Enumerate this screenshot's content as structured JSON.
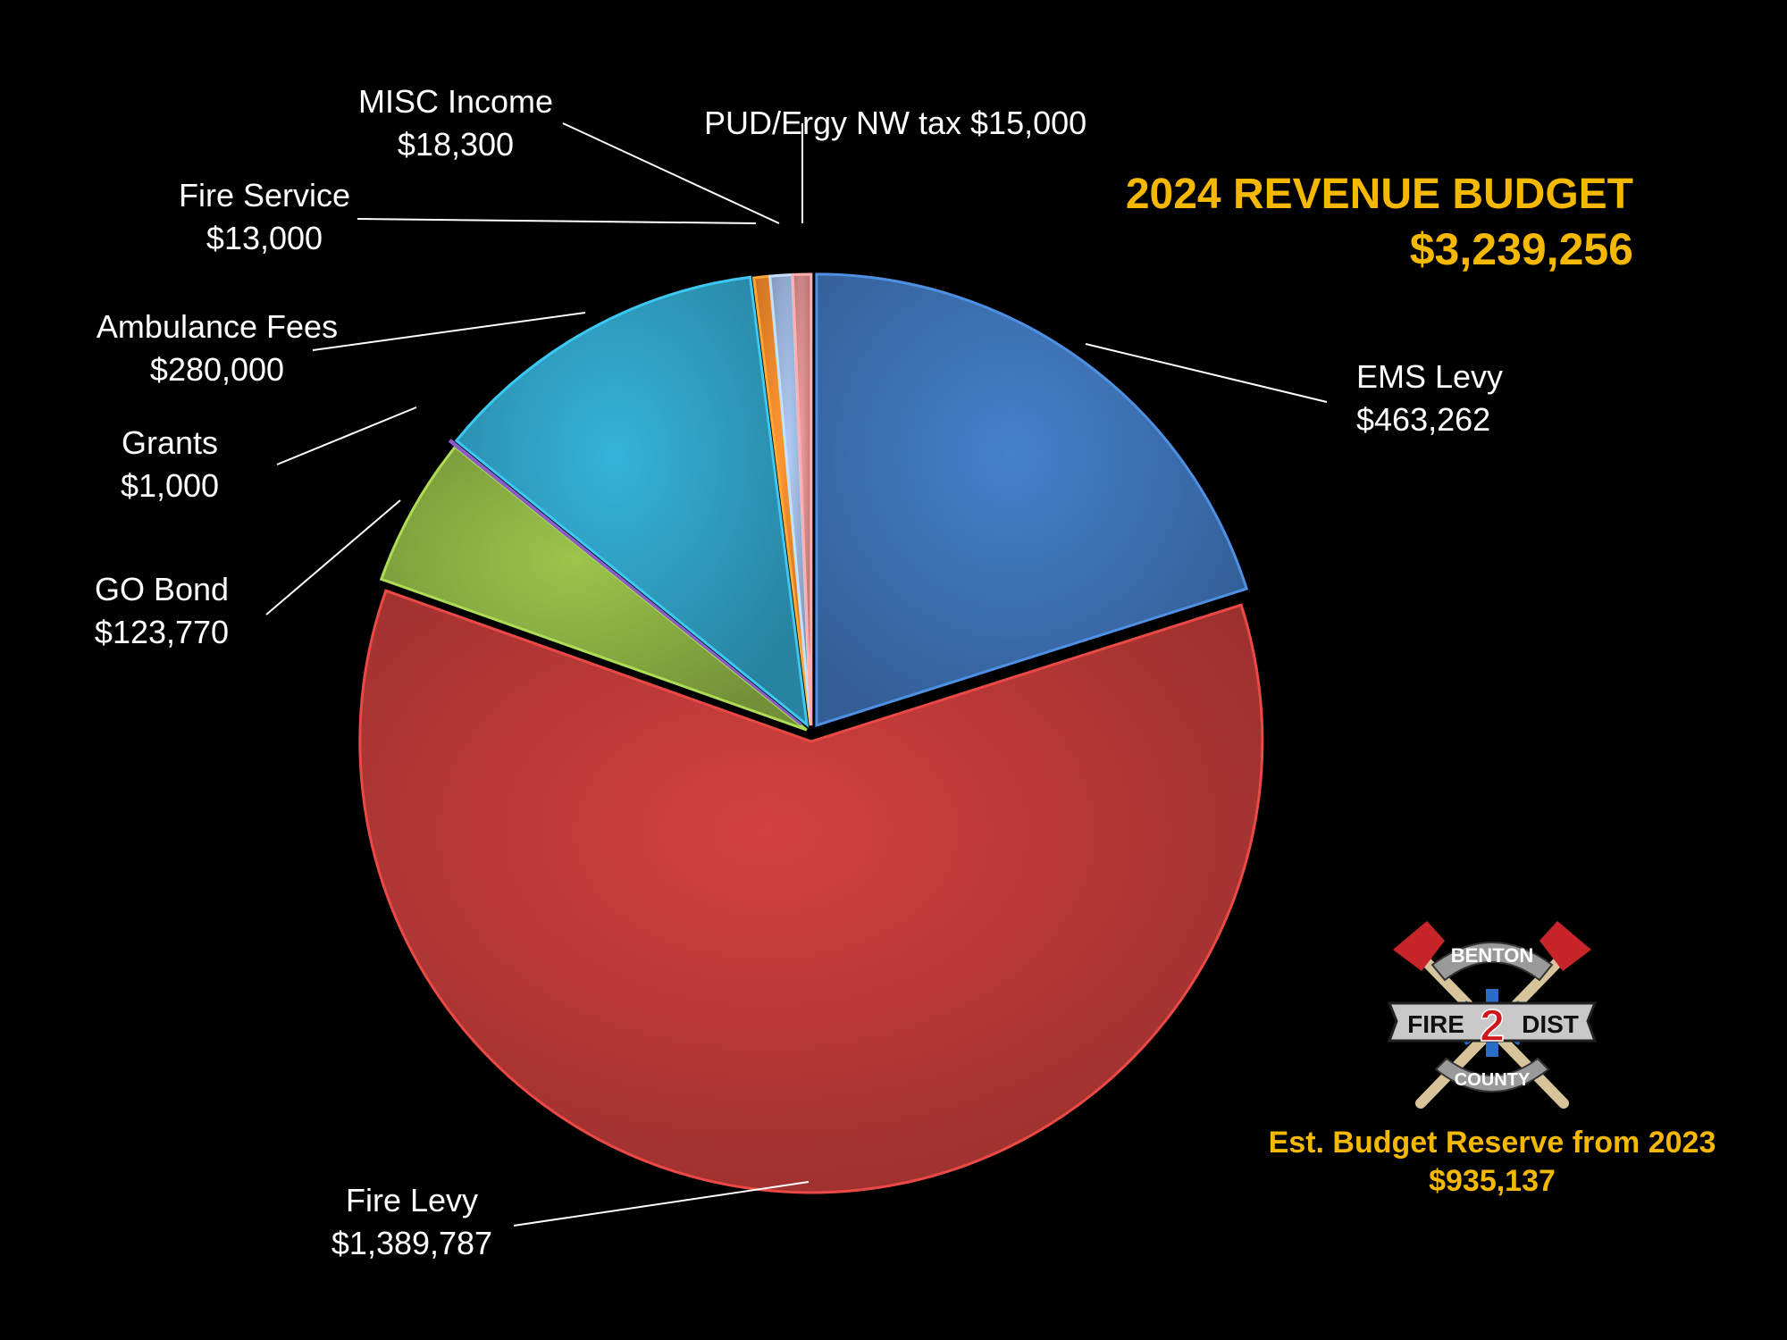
{
  "title": "2024 REVENUE BUDGET",
  "total": "$3,239,256",
  "reserve": {
    "label": "Est. Budget Reserve from 2023",
    "value": "$935,137"
  },
  "logo": {
    "top": "BENTON",
    "left": "FIRE",
    "number": "2",
    "right": "DIST",
    "bottom": "COUNTY"
  },
  "colors": {
    "accent": "#f5b800",
    "background": "#000000"
  },
  "chart_data": {
    "type": "pie",
    "title": "2024 REVENUE BUDGET",
    "start": "12 o'clock",
    "direction": "clockwise",
    "slices": [
      {
        "label": "EMS Levy",
        "value_text": "$463,262",
        "value": 463262,
        "color": "#3e73b6"
      },
      {
        "label": "Fire Levy",
        "value_text": "$1,389,787",
        "value": 1389787,
        "color": "#bd3a38"
      },
      {
        "label": "GO Bond",
        "value_text": "$123,770",
        "value": 123770,
        "color": "#8bb043"
      },
      {
        "label": "Grants",
        "value_text": "$1,000",
        "value": 1000,
        "color": "#6d4aa0"
      },
      {
        "label": "Ambulance Fees",
        "value_text": "$280,000",
        "value": 280000,
        "color": "#2fa0c2"
      },
      {
        "label": "Fire Service",
        "value_text": "$13,000",
        "value": 13000,
        "color": "#f0862a"
      },
      {
        "label": "MISC Income",
        "value_text": "$18,300",
        "value": 18300,
        "color": "#9cb5dc"
      },
      {
        "label": "PUD/Ergy NW tax",
        "value_text": "$15,000",
        "value": 15000,
        "color": "#d98c8c"
      }
    ]
  }
}
